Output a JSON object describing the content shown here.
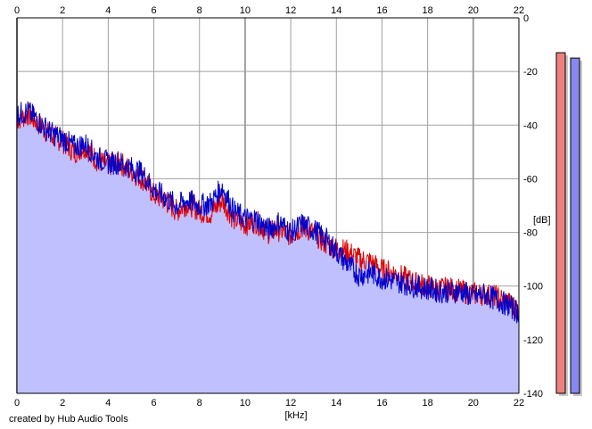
{
  "credit": "created by Hub Audio Tools",
  "colors": {
    "left": "#e00000",
    "right": "#0000cc",
    "fill": "#c0c0ff",
    "grid": "#a0a0a0",
    "meter_left": "#f08080",
    "meter_right": "#8888ee"
  },
  "chart_data": {
    "type": "line",
    "title": "",
    "xlabel": "[kHz]",
    "ylabel": "[dB]",
    "xlim": [
      0,
      22
    ],
    "ylim": [
      -140,
      0
    ],
    "x_ticks": [
      "0",
      "2",
      "4",
      "6",
      "8",
      "10",
      "12",
      "14",
      "16",
      "18",
      "20",
      "22"
    ],
    "y_ticks": [
      "0",
      "-20",
      "-40",
      "-60",
      "-80",
      "-100",
      "-120",
      "-140"
    ],
    "grid": true,
    "area_fill": true,
    "series": [
      {
        "color": "#e00000",
        "x": [
          0,
          0.5,
          1,
          1.5,
          2,
          2.5,
          3,
          3.5,
          4,
          4.5,
          5,
          5.5,
          6,
          6.5,
          7,
          7.5,
          8,
          8.5,
          9,
          9.5,
          10,
          10.5,
          11,
          11.5,
          12,
          12.5,
          13,
          13.5,
          14,
          14.5,
          15,
          15.5,
          16,
          16.5,
          17,
          17.5,
          18,
          18.5,
          19,
          19.5,
          20,
          20.5,
          21,
          21.5,
          22
        ],
        "y": [
          -38,
          -36,
          -40,
          -44,
          -46,
          -50,
          -48,
          -53,
          -55,
          -54,
          -57,
          -60,
          -66,
          -68,
          -72,
          -69,
          -72,
          -73,
          -68,
          -75,
          -77,
          -76,
          -80,
          -79,
          -81,
          -78,
          -80,
          -84,
          -86,
          -87,
          -90,
          -91,
          -94,
          -95,
          -97,
          -99,
          -100,
          -101,
          -101,
          -102,
          -103,
          -103,
          -104,
          -106,
          -109
        ]
      },
      {
        "color": "#0000cc",
        "x": [
          0,
          0.5,
          1,
          1.5,
          2,
          2.5,
          3,
          3.5,
          4,
          4.5,
          5,
          5.5,
          6,
          6.5,
          7,
          7.5,
          8,
          8.5,
          9,
          9.5,
          10,
          10.5,
          11,
          11.5,
          12,
          12.5,
          13,
          13.5,
          14,
          14.5,
          15,
          15.5,
          16,
          16.5,
          17,
          17.5,
          18,
          18.5,
          19,
          19.5,
          20,
          20.5,
          21,
          21.5,
          22
        ],
        "y": [
          -36,
          -35,
          -39,
          -43,
          -45,
          -48,
          -47,
          -52,
          -54,
          -54,
          -56,
          -58,
          -64,
          -67,
          -70,
          -68,
          -70,
          -69,
          -63,
          -72,
          -75,
          -75,
          -79,
          -76,
          -80,
          -77,
          -79,
          -82,
          -87,
          -92,
          -96,
          -95,
          -97,
          -98,
          -99,
          -100,
          -101,
          -102,
          -102,
          -102,
          -104,
          -103,
          -105,
          -107,
          -110
        ]
      }
    ]
  },
  "meters": [
    {
      "channel": "left",
      "level_db": -13
    },
    {
      "channel": "right",
      "level_db": -15
    }
  ]
}
